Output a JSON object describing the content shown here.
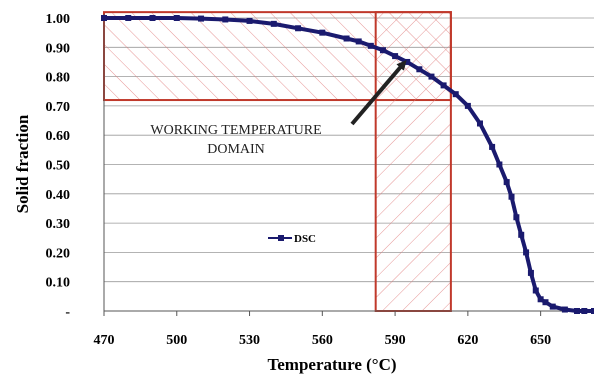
{
  "chart_data": {
    "type": "line",
    "title": "",
    "xlabel": "Temperature (°C)",
    "ylabel": "Solid fraction",
    "xlim": [
      470,
      672
    ],
    "ylim": [
      0,
      1.0
    ],
    "x_ticks": [
      470,
      500,
      530,
      560,
      590,
      620,
      650
    ],
    "x_tick_labels": [
      "470",
      "500",
      "530",
      "560",
      "590",
      "620",
      "650"
    ],
    "y_ticks": [
      0,
      0.1,
      0.2,
      0.3,
      0.4,
      0.5,
      0.6,
      0.7,
      0.8,
      0.9,
      1.0
    ],
    "y_tick_labels": [
      "-",
      "0.10",
      "0.20",
      "0.30",
      "0.40",
      "0.50",
      "0.60",
      "0.70",
      "0.80",
      "0.90",
      "1.00"
    ],
    "grid": "horizontal",
    "legend_position": "center-left",
    "series": [
      {
        "name": "DSC",
        "color": "#1a1a6e",
        "marker": "square",
        "x": [
          470,
          480,
          490,
          500,
          510,
          520,
          530,
          540,
          550,
          560,
          570,
          575,
          580,
          585,
          590,
          595,
          600,
          605,
          610,
          615,
          620,
          625,
          630,
          633,
          636,
          638,
          640,
          642,
          644,
          646,
          648,
          650,
          652,
          655,
          660,
          665,
          668,
          672
        ],
        "y": [
          1.0,
          1.0,
          1.0,
          1.0,
          0.998,
          0.995,
          0.99,
          0.98,
          0.965,
          0.95,
          0.93,
          0.92,
          0.905,
          0.89,
          0.87,
          0.85,
          0.825,
          0.8,
          0.77,
          0.74,
          0.7,
          0.64,
          0.56,
          0.5,
          0.44,
          0.39,
          0.32,
          0.26,
          0.2,
          0.13,
          0.07,
          0.04,
          0.03,
          0.015,
          0.005,
          0.0,
          0.0,
          0.0
        ]
      }
    ],
    "annotations": [
      {
        "text": [
          "WORKING TEMPERATURE",
          "DOMAIN"
        ]
      }
    ],
    "regions": [
      {
        "name": "solid-fraction-band",
        "x_range": [
          470,
          613
        ],
        "y_range": [
          0.72,
          1.02
        ],
        "color": "#c0392b",
        "hatch": "forward-diagonal"
      },
      {
        "name": "temperature-band",
        "x_range": [
          582,
          613
        ],
        "y_range": [
          0,
          1.02
        ],
        "color": "#c0392b",
        "hatch": "back-diagonal"
      }
    ]
  }
}
